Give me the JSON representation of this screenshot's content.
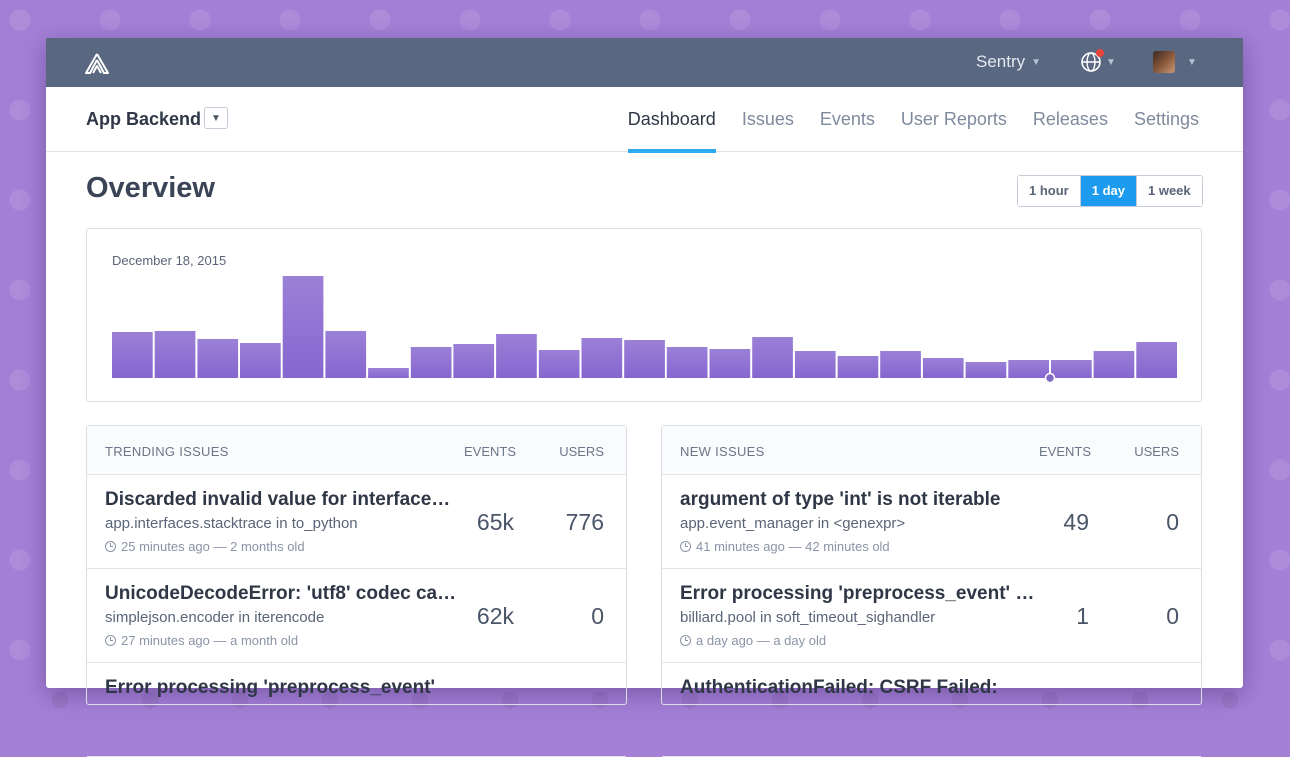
{
  "header": {
    "org_name": "Sentry",
    "icons": {
      "logo": "sentry-logo-icon",
      "globe": "globe-icon",
      "avatar": "user-avatar"
    }
  },
  "project": {
    "name": "App Backend"
  },
  "tabs": [
    {
      "label": "Dashboard",
      "active": true
    },
    {
      "label": "Issues",
      "active": false
    },
    {
      "label": "Events",
      "active": false
    },
    {
      "label": "User Reports",
      "active": false
    },
    {
      "label": "Releases",
      "active": false
    },
    {
      "label": "Settings",
      "active": false
    }
  ],
  "page": {
    "title": "Overview"
  },
  "time_range": {
    "options": [
      "1 hour",
      "1 day",
      "1 week"
    ],
    "selected": "1 day"
  },
  "chart_data": {
    "type": "bar",
    "title": "December 18, 2015",
    "xlabel": "",
    "ylabel": "",
    "values": [
      46,
      47,
      39,
      35,
      102,
      47,
      10,
      31,
      34,
      44,
      28,
      40,
      38,
      31,
      29,
      41,
      27,
      22,
      27,
      20,
      16,
      18,
      18,
      27,
      36
    ],
    "ylim": [
      0,
      105
    ],
    "grid": false,
    "marked_index": 22,
    "bar_color": "#9b80d7",
    "bar_color_bottom": "#8666cf"
  },
  "trending": {
    "header": {
      "title": "Trending Issues",
      "events": "Events",
      "users": "Users"
    },
    "rows": [
      {
        "title": "Discarded invalid value for interface…",
        "culprit": "app.interfaces.stacktrace in to_python",
        "meta": "25 minutes ago — 2 months old",
        "events": "65k",
        "users": "776"
      },
      {
        "title": "UnicodeDecodeError: 'utf8' codec ca…",
        "culprit": "simplejson.encoder in iterencode",
        "meta": "27 minutes ago — a month old",
        "events": "62k",
        "users": "0"
      },
      {
        "title": "Error processing 'preprocess_event'",
        "culprit": "",
        "meta": "",
        "events": "",
        "users": ""
      }
    ]
  },
  "new_issues": {
    "header": {
      "title": "New Issues",
      "events": "Events",
      "users": "Users"
    },
    "rows": [
      {
        "title": "argument of type 'int' is not iterable",
        "culprit": "app.event_manager in <genexpr>",
        "meta": "41 minutes ago — 42 minutes old",
        "events": "49",
        "users": "0"
      },
      {
        "title": "Error processing 'preprocess_event' …",
        "culprit": "billiard.pool in soft_timeout_sighandler",
        "meta": "a day ago — a day old",
        "events": "1",
        "users": "0"
      },
      {
        "title": "AuthenticationFailed: CSRF Failed:",
        "culprit": "",
        "meta": "",
        "events": "",
        "users": ""
      }
    ]
  },
  "colors": {
    "accent": "#2dacf0",
    "topbar": "#5a6780",
    "background": "#a47fd6",
    "range_active": "#1c9bef"
  }
}
